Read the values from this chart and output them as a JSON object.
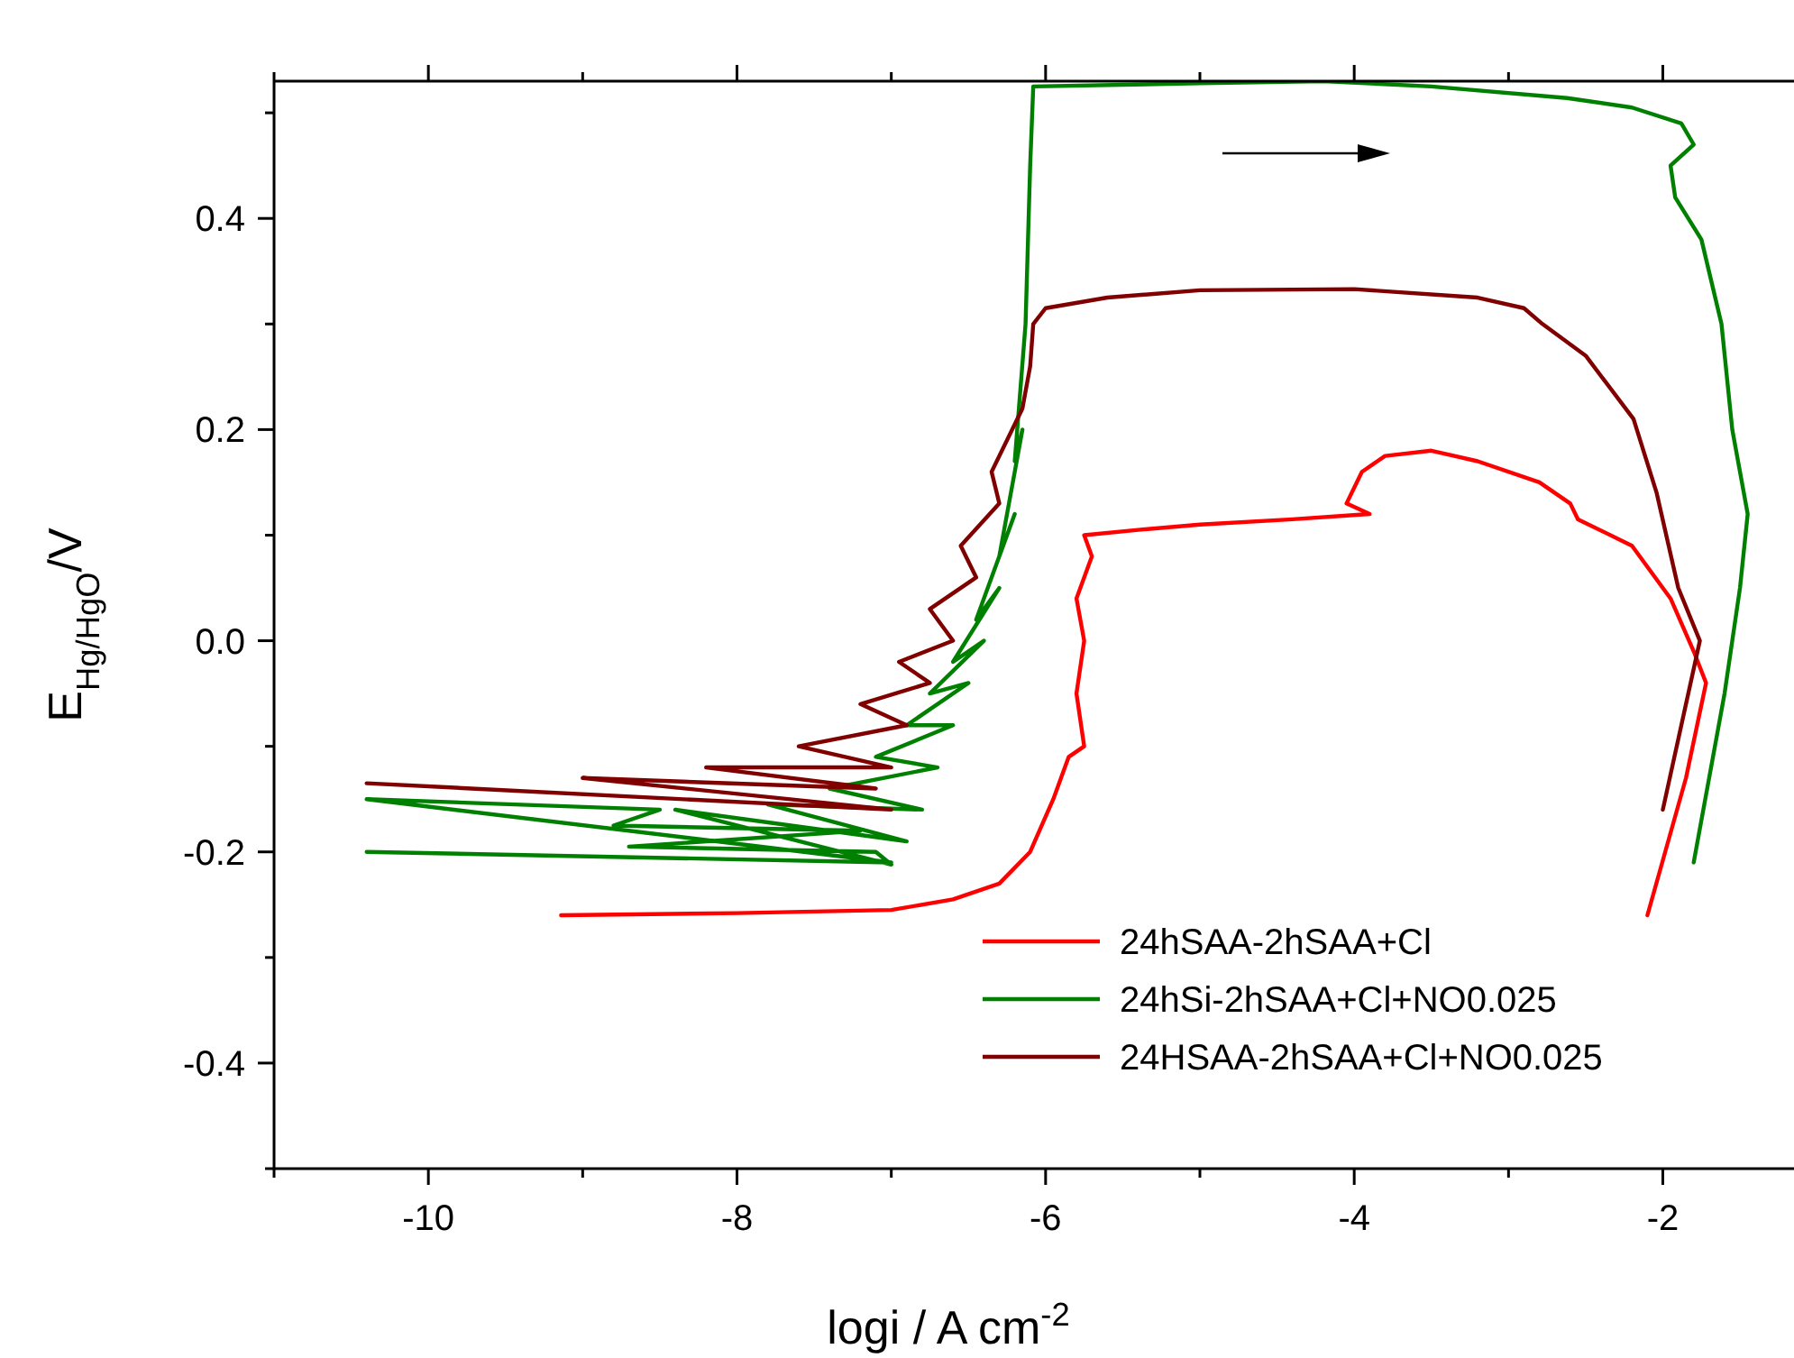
{
  "chart_data": {
    "type": "line",
    "xlabel": "logi / A cm$^{-2}$",
    "ylabel": "E$_{Hg/HgO}$/V",
    "xlim": [
      -11,
      -1.15
    ],
    "ylim": [
      -0.5,
      0.53
    ],
    "xticks": [
      {
        "value": -11,
        "label": null
      },
      -10,
      {
        "value": -9,
        "label": null
      },
      -8,
      {
        "value": -7,
        "label": null
      },
      -6,
      {
        "value": -5,
        "label": null
      },
      -4,
      {
        "value": -3,
        "label": null
      },
      -2
    ],
    "yticks": [
      {
        "value": -0.5,
        "label": null
      },
      -0.4,
      {
        "value": -0.3,
        "label": null
      },
      {
        "value": -0.2,
        "label": "-0.2"
      },
      {
        "value": -0.1,
        "label": null
      },
      {
        "value": 0,
        "label": "0.0"
      },
      {
        "value": 0.1,
        "label": null
      },
      {
        "value": 0.2,
        "label": "0.2"
      },
      {
        "value": 0.3,
        "label": null
      },
      {
        "value": 0.4,
        "label": "0.4"
      },
      {
        "value": 0.5,
        "label": null
      }
    ],
    "grid": false,
    "legend": "bottom right",
    "marker": "none",
    "line_style": "solid",
    "series": [
      {
        "name": "24hSAA-2hSAA+Cl",
        "color": "#ff0000",
        "x": [
          -9.14,
          -8,
          -7.0,
          -6.6,
          -6.3,
          -6.1,
          -5.95,
          -5.85,
          -5.75,
          -5.8,
          -5.75,
          -5.8,
          -5.7,
          -5.75,
          -5.4,
          -5.0,
          -4.4,
          -3.9,
          -4.05,
          -3.95,
          -3.8,
          -3.5,
          -3.2,
          -2.8,
          -2.6,
          -2.55,
          -2.2,
          -1.95,
          -1.8,
          -1.72,
          -1.85,
          -2.1
        ],
        "values": [
          -0.26,
          -0.258,
          -0.255,
          -0.245,
          -0.23,
          -0.2,
          -0.15,
          -0.11,
          -0.1,
          -0.05,
          0.0,
          0.04,
          0.08,
          0.1,
          0.105,
          0.11,
          0.115,
          0.12,
          0.13,
          0.16,
          0.175,
          0.18,
          0.17,
          0.15,
          0.13,
          0.115,
          0.09,
          0.04,
          -0.01,
          -0.04,
          -0.13,
          -0.26
        ]
      },
      {
        "name": "24hSi-2hSAA+Cl+NO0.025",
        "color": "#008000",
        "x": [
          -10.4,
          -7.0,
          -10.4,
          -8.5,
          -8.8,
          -7.2,
          -8.7,
          -7.1,
          -7.0,
          -8.4,
          -6.9,
          -7.8,
          -6.8,
          -7.4,
          -6.7,
          -7.1,
          -6.6,
          -6.9,
          -6.5,
          -6.75,
          -6.4,
          -6.6,
          -6.3,
          -6.45,
          -6.2,
          -6.3,
          -6.15,
          -6.2,
          -6.13,
          -6.1,
          -6.08,
          -5.0,
          -4.2,
          -3.5,
          -2.62,
          -2.2,
          -1.88,
          -1.8,
          -1.95,
          -1.92,
          -1.75,
          -1.62,
          -1.55,
          -1.45,
          -1.5,
          -1.6,
          -1.8
        ],
        "values": [
          -0.2,
          -0.21,
          -0.15,
          -0.16,
          -0.175,
          -0.18,
          -0.195,
          -0.2,
          -0.212,
          -0.16,
          -0.19,
          -0.155,
          -0.16,
          -0.14,
          -0.12,
          -0.11,
          -0.08,
          -0.08,
          -0.04,
          -0.05,
          0.0,
          -0.02,
          0.05,
          0.02,
          0.12,
          0.08,
          0.2,
          0.17,
          0.3,
          0.45,
          0.525,
          0.528,
          0.53,
          0.525,
          0.514,
          0.505,
          0.49,
          0.47,
          0.45,
          0.42,
          0.38,
          0.3,
          0.2,
          0.12,
          0.05,
          -0.05,
          -0.21
        ]
      },
      {
        "name": "24HSAA-2hSAA+Cl+NO0.025",
        "color": "#800000",
        "x": [
          -10.4,
          -7.0,
          -9.0,
          -7.1,
          -8.2,
          -7.0,
          -7.6,
          -6.9,
          -7.2,
          -6.75,
          -6.95,
          -6.6,
          -6.75,
          -6.45,
          -6.55,
          -6.3,
          -6.35,
          -6.15,
          -6.1,
          -6.08,
          -6.0,
          -5.6,
          -5.0,
          -4.0,
          -3.2,
          -2.9,
          -2.78,
          -2.5,
          -2.19,
          -2.04,
          -1.9,
          -1.76,
          -1.85,
          -2.0
        ],
        "values": [
          -0.135,
          -0.16,
          -0.13,
          -0.14,
          -0.12,
          -0.12,
          -0.1,
          -0.08,
          -0.06,
          -0.04,
          -0.02,
          0.0,
          0.03,
          0.06,
          0.09,
          0.13,
          0.16,
          0.22,
          0.26,
          0.3,
          0.315,
          0.325,
          0.332,
          0.333,
          0.325,
          0.315,
          0.3,
          0.27,
          0.21,
          0.14,
          0.05,
          0.0,
          -0.06,
          -0.16
        ]
      }
    ]
  }
}
